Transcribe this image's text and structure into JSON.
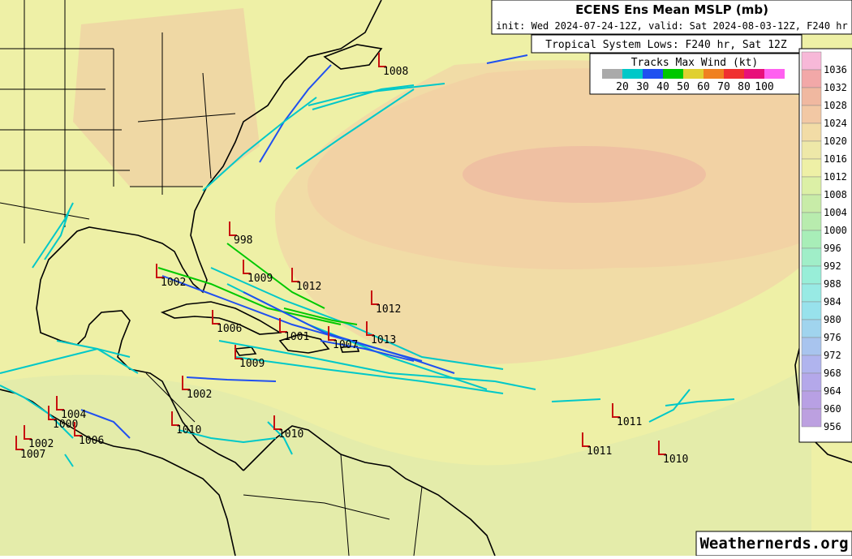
{
  "header": {
    "title": "ECENS Ens Mean MSLP (mb)",
    "subtitle": "init: Wed 2024-07-24-12Z, valid: Sat 2024-08-03-12Z, F240 hr"
  },
  "lows_box": {
    "title": "Tropical System Lows: F240 hr, Sat 12Z"
  },
  "track_legend": {
    "title": "Tracks Max Wind (kt)",
    "colors": [
      "#aaaaaa",
      "#00c8c8",
      "#2050f0",
      "#00c800",
      "#e0d030",
      "#f08020",
      "#f03030",
      "#e8107a",
      "#ff60f0"
    ],
    "labels": [
      "20",
      "30",
      "40",
      "50",
      "60",
      "70",
      "80",
      "100"
    ]
  },
  "colorbar": {
    "labels": [
      "1036",
      "1032",
      "1028",
      "1024",
      "1020",
      "1016",
      "1012",
      "1008",
      "1004",
      "1000",
      "996",
      "992",
      "988",
      "984",
      "980",
      "976",
      "972",
      "968",
      "964",
      "960",
      "956"
    ],
    "colors": [
      "#f7b8d8",
      "#f2a8a8",
      "#f0b8a0",
      "#f2c8a4",
      "#f2dca6",
      "#eee8a8",
      "#eef0a6",
      "#dcf0a6",
      "#c8eca8",
      "#b8ecae",
      "#a8eeb8",
      "#a0eec8",
      "#98eed8",
      "#98eae4",
      "#98e2ec",
      "#a0d4ee",
      "#a8c4ee",
      "#b0b4ee",
      "#b4a8ea",
      "#b8a0e4",
      "#bca0e0"
    ]
  },
  "lows": [
    {
      "label": "1008"
    },
    {
      "label": "998"
    },
    {
      "label": "1002"
    },
    {
      "label": "1009"
    },
    {
      "label": "1012"
    },
    {
      "label": "1012"
    },
    {
      "label": "1001"
    },
    {
      "label": "1007"
    },
    {
      "label": "1013"
    },
    {
      "label": "1006"
    },
    {
      "label": "1009"
    },
    {
      "label": "1002"
    },
    {
      "label": "1010"
    },
    {
      "label": "1010"
    },
    {
      "label": "1011"
    },
    {
      "label": "1011"
    },
    {
      "label": "1010"
    },
    {
      "label": "1004"
    },
    {
      "label": "1000"
    },
    {
      "label": "1006"
    },
    {
      "label": "1007"
    },
    {
      "label": "1002"
    }
  ],
  "watermark": "Weathernerds.org"
}
